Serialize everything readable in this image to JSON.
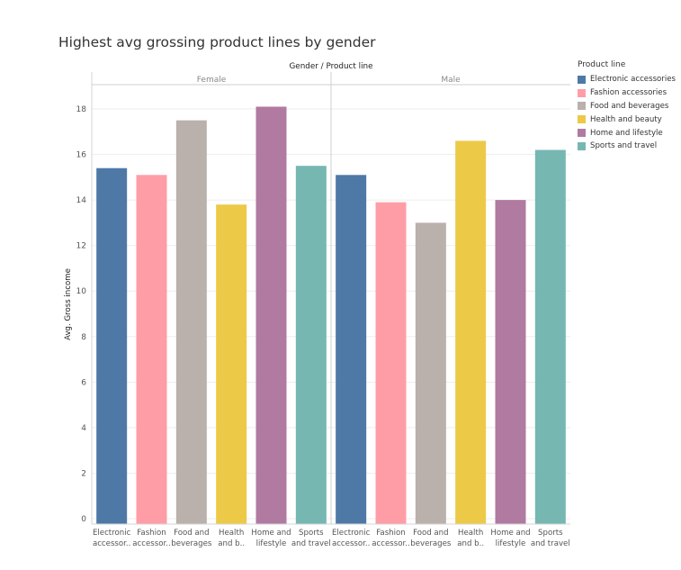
{
  "chart_data": {
    "type": "bar",
    "title": "Highest avg grossing product lines by gender",
    "column_header": "Gender  /  Product line",
    "ylabel": "Avg. Gross income",
    "ylim": [
      0,
      19
    ],
    "yticks": [
      0,
      2,
      4,
      6,
      8,
      10,
      12,
      14,
      16,
      18
    ],
    "grid": true,
    "legend_position": "right",
    "legend_title": "Product line",
    "categories": [
      "Electronic accessories",
      "Fashion accessories",
      "Food and beverages",
      "Health and beauty",
      "Home and lifestyle",
      "Sports and travel"
    ],
    "category_labels": [
      [
        "Electronic",
        "accessor.."
      ],
      [
        "Fashion",
        "accessor.."
      ],
      [
        "Food and",
        "beverages"
      ],
      [
        "Health",
        "and b.."
      ],
      [
        "Home and",
        "lifestyle"
      ],
      [
        "Sports",
        "and travel"
      ]
    ],
    "colors": [
      "#4e79a7",
      "#ff9da7",
      "#bab0ac",
      "#edc948",
      "#b07aa1",
      "#76b7b2"
    ],
    "panels": [
      {
        "name": "Female",
        "values": [
          15.4,
          15.1,
          17.5,
          13.8,
          18.1,
          15.5
        ]
      },
      {
        "name": "Male",
        "values": [
          15.1,
          13.9,
          13.0,
          16.6,
          14.0,
          16.2
        ]
      }
    ]
  }
}
